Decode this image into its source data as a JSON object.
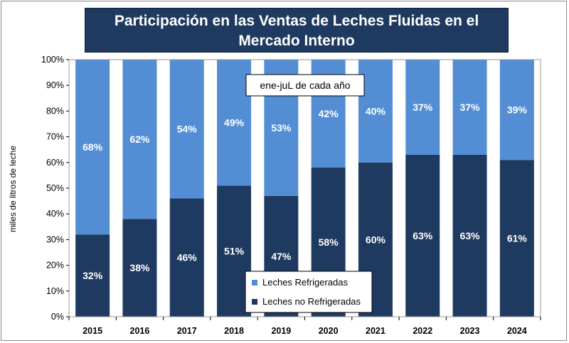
{
  "chart_data": {
    "type": "bar",
    "stacked": true,
    "title": "Participación en las Ventas de Leches Fluidas en el Mercado Interno",
    "ylabel": "miles de litros de leche",
    "note": "ene-juL de cada año",
    "ylim": [
      0,
      100
    ],
    "yticks": [
      "0%",
      "10%",
      "20%",
      "30%",
      "40%",
      "50%",
      "60%",
      "70%",
      "80%",
      "90%",
      "100%"
    ],
    "categories": [
      "2015",
      "2016",
      "2017",
      "2018",
      "2019",
      "2020",
      "2021",
      "2022",
      "2023",
      "2024"
    ],
    "series": [
      {
        "name": "Leches no Refrigeradas",
        "values": [
          32,
          38,
          46,
          51,
          47,
          58,
          60,
          63,
          63,
          61
        ],
        "labels": [
          "32%",
          "38%",
          "46%",
          "51%",
          "47%",
          "58%",
          "60%",
          "63%",
          "63%",
          "61%"
        ],
        "color": "#1f3a60"
      },
      {
        "name": "Leches Refrigeradas",
        "values": [
          68,
          62,
          54,
          49,
          53,
          42,
          40,
          37,
          37,
          39
        ],
        "labels": [
          "68%",
          "62%",
          "54%",
          "49%",
          "53%",
          "42%",
          "40%",
          "37%",
          "37%",
          "39%"
        ],
        "color": "#538ed5"
      }
    ],
    "legend": "bottom-center",
    "grid": false
  }
}
